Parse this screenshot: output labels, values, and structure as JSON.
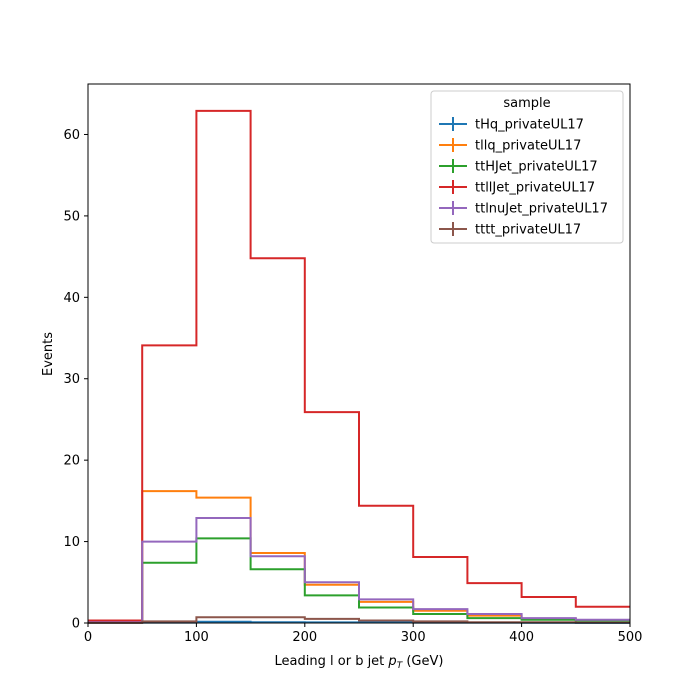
{
  "chart_data": {
    "type": "line",
    "drawstyle": "step-histogram",
    "bin_edges": [
      0,
      50,
      100,
      150,
      200,
      250,
      300,
      350,
      400,
      450,
      500
    ],
    "xlabel_main": "Leading l or b jet ",
    "xlabel_math": "p",
    "xlabel_sub": "T",
    "xlabel_unit": " (GeV)",
    "ylabel": "Events",
    "xlim": [
      0,
      500
    ],
    "ylim": [
      0,
      66.2
    ],
    "xticks": [
      0,
      100,
      200,
      300,
      400,
      500
    ],
    "yticks": [
      0,
      10,
      20,
      30,
      40,
      50,
      60
    ],
    "grid": false,
    "legend": {
      "title": "sample",
      "placement": "top-right"
    },
    "series": [
      {
        "name": "tHq_privateUL17",
        "color": "#1f77b4",
        "values": [
          0.05,
          0.05,
          0.15,
          0.1,
          0.08,
          0.06,
          0.05,
          0.04,
          0.03,
          0.02
        ]
      },
      {
        "name": "tllq_privateUL17",
        "color": "#ff7f0e",
        "values": [
          0.3,
          16.2,
          15.4,
          8.6,
          4.7,
          2.6,
          1.5,
          0.9,
          0.5,
          0.3
        ]
      },
      {
        "name": "ttHJet_privateUL17",
        "color": "#2ca02c",
        "values": [
          0.1,
          7.4,
          10.4,
          6.6,
          3.4,
          1.9,
          1.1,
          0.6,
          0.4,
          0.3
        ]
      },
      {
        "name": "ttllJet_privateUL17",
        "color": "#d62728",
        "values": [
          0.3,
          34.1,
          62.9,
          44.8,
          25.9,
          14.4,
          8.1,
          4.9,
          3.2,
          2.0
        ]
      },
      {
        "name": "ttlnuJet_privateUL17",
        "color": "#9467bd",
        "values": [
          0.1,
          10.0,
          12.9,
          8.2,
          5.0,
          2.9,
          1.7,
          1.1,
          0.6,
          0.4
        ]
      },
      {
        "name": "tttt_privateUL17",
        "color": "#8c564b",
        "values": [
          0.02,
          0.2,
          0.7,
          0.7,
          0.5,
          0.3,
          0.2,
          0.1,
          0.1,
          0.05
        ]
      }
    ]
  }
}
